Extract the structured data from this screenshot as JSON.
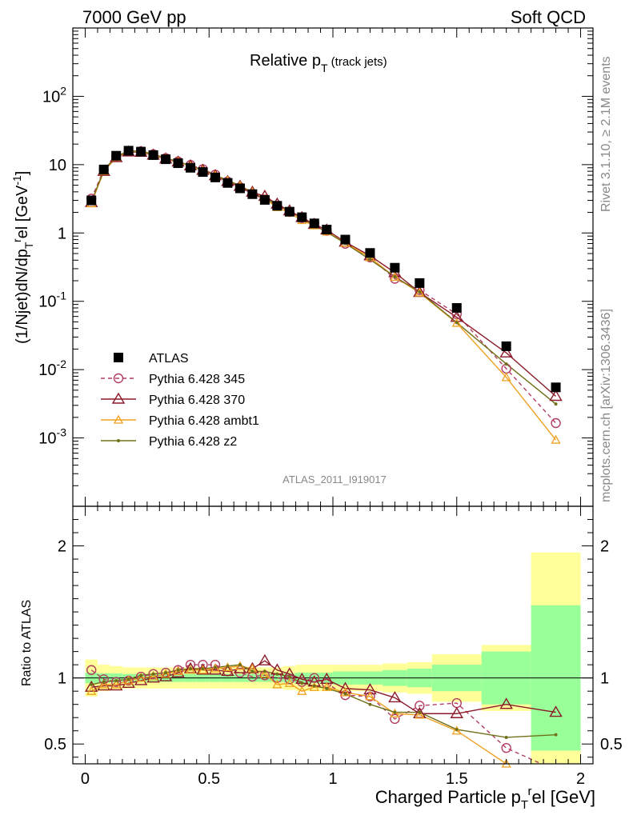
{
  "header": {
    "left": "7000 GeV pp",
    "right": "Soft QCD"
  },
  "side": {
    "rivet": "Rivet 3.1.10, ≥ 2.1M events",
    "mcplots": "mcplots.cern.ch [arXiv:1306.3436]"
  },
  "watermark": "ATLAS_2011_I919017",
  "chart_data": {
    "type": "scatter",
    "title": {
      "main": "Relative p",
      "sub": "T",
      "suffix": " (track jets)"
    },
    "xlabel": {
      "main": "Charged Particle p",
      "sub": "T",
      "sup": "r",
      "suffix": "el [GeV]"
    },
    "ylabel": {
      "prefix": "(1/Njet)dN/dp",
      "sub": "T",
      "sup": "r",
      "suffix": "el [GeV",
      "sup2": "-1",
      "end": "]"
    },
    "ratio_ylabel": "Ratio to ATLAS",
    "xlim": [
      -0.05,
      2.05
    ],
    "ylim": [
      0.0001,
      1000
    ],
    "ylog": true,
    "ratio_ylim": [
      0.35,
      2.3
    ],
    "xticks": [
      0,
      0.5,
      1,
      1.5,
      2
    ],
    "xtick_labels": [
      "0",
      "0.5",
      "1",
      "1.5",
      "2"
    ],
    "main_yticks": [
      {
        "base": "10",
        "exp": "-3",
        "value": 0.001
      },
      {
        "base": "10",
        "exp": "-2",
        "value": 0.01
      },
      {
        "base": "10",
        "exp": "-1",
        "value": 0.1
      },
      {
        "base": "1",
        "exp": "",
        "value": 1
      },
      {
        "base": "10",
        "exp": "",
        "value": 10
      },
      {
        "base": "10",
        "exp": "2",
        "value": 100
      }
    ],
    "ratio_yticks": [
      {
        "label": "0.5",
        "value": 0.5
      },
      {
        "label": "1",
        "value": 1
      },
      {
        "label": "2",
        "value": 2
      }
    ],
    "legend_position": "lower-left",
    "x": [
      0.025,
      0.075,
      0.125,
      0.175,
      0.225,
      0.275,
      0.325,
      0.375,
      0.425,
      0.475,
      0.525,
      0.575,
      0.625,
      0.675,
      0.725,
      0.775,
      0.825,
      0.875,
      0.925,
      0.975,
      1.05,
      1.15,
      1.25,
      1.35,
      1.5,
      1.7,
      1.9
    ],
    "bins_upper_edge": [
      0.05,
      0.1,
      0.15,
      0.2,
      0.25,
      0.3,
      0.35,
      0.4,
      0.45,
      0.5,
      0.55,
      0.6,
      0.65,
      0.7,
      0.75,
      0.8,
      0.85,
      0.9,
      0.95,
      1.0,
      1.1,
      1.2,
      1.3,
      1.4,
      1.6,
      1.8,
      2.0
    ],
    "band_stat": [
      0.04,
      0.035,
      0.035,
      0.03,
      0.03,
      0.03,
      0.03,
      0.03,
      0.03,
      0.03,
      0.03,
      0.03,
      0.03,
      0.03,
      0.03,
      0.03,
      0.035,
      0.04,
      0.04,
      0.04,
      0.05,
      0.05,
      0.06,
      0.07,
      0.1,
      0.2,
      0.55
    ],
    "band_tot": [
      0.14,
      0.1,
      0.09,
      0.08,
      0.08,
      0.08,
      0.08,
      0.08,
      0.08,
      0.08,
      0.08,
      0.08,
      0.08,
      0.08,
      0.08,
      0.08,
      0.09,
      0.1,
      0.1,
      0.1,
      0.1,
      0.1,
      0.11,
      0.12,
      0.18,
      0.25,
      0.95
    ],
    "series": [
      {
        "name": "ATLAS",
        "color": "#000000",
        "marker": "square",
        "values": [
          3.0,
          8.5,
          13.5,
          16.0,
          15.5,
          13.8,
          12.0,
          10.5,
          9.0,
          7.8,
          6.5,
          5.4,
          4.5,
          3.7,
          3.05,
          2.5,
          2.05,
          1.7,
          1.38,
          1.12,
          0.8,
          0.51,
          0.31,
          0.185,
          0.08,
          0.022,
          0.0055
        ]
      },
      {
        "name": "Pythia 6.428 345",
        "color": "#b23c60",
        "marker": "circle",
        "dashed": true,
        "ratio": [
          1.06,
          0.99,
          0.97,
          0.98,
          1.01,
          1.03,
          1.04,
          1.06,
          1.1,
          1.1,
          1.1,
          1.05,
          1.04,
          1.01,
          1.02,
          1.0,
          0.99,
          0.97,
          1.0,
          0.96,
          0.87,
          0.86,
          0.69,
          0.79,
          0.81,
          0.47,
          0.3
        ]
      },
      {
        "name": "Pythia 6.428 370",
        "color": "#8b1a2a",
        "marker": "triangle",
        "ratio": [
          0.93,
          0.94,
          0.94,
          0.96,
          0.98,
          1.0,
          1.01,
          1.04,
          1.07,
          1.06,
          1.06,
          1.05,
          1.07,
          1.07,
          1.13,
          1.06,
          1.03,
          0.99,
          0.97,
          0.99,
          0.92,
          0.91,
          0.85,
          0.73,
          0.73,
          0.8,
          0.74
        ]
      },
      {
        "name": "Pythia 6.428 ambt1",
        "color": "#f0a020",
        "marker": "triangle-small",
        "ratio": [
          0.9,
          0.95,
          0.95,
          0.98,
          1.0,
          1.01,
          1.03,
          1.05,
          1.06,
          1.06,
          1.07,
          1.08,
          1.09,
          1.07,
          1.03,
          0.95,
          0.96,
          0.9,
          0.93,
          0.93,
          0.89,
          0.86,
          0.73,
          0.72,
          0.6,
          0.35,
          0.17
        ]
      },
      {
        "name": "Pythia 6.428 z2",
        "color": "#70701a",
        "marker": "dot",
        "ratio": [
          0.95,
          0.97,
          0.98,
          0.99,
          1.02,
          1.03,
          1.04,
          1.06,
          1.07,
          1.07,
          1.08,
          1.09,
          1.1,
          1.05,
          1.05,
          1.03,
          1.01,
          0.96,
          0.94,
          0.92,
          0.88,
          0.8,
          0.74,
          0.74,
          0.61,
          0.55,
          0.57
        ]
      }
    ]
  }
}
